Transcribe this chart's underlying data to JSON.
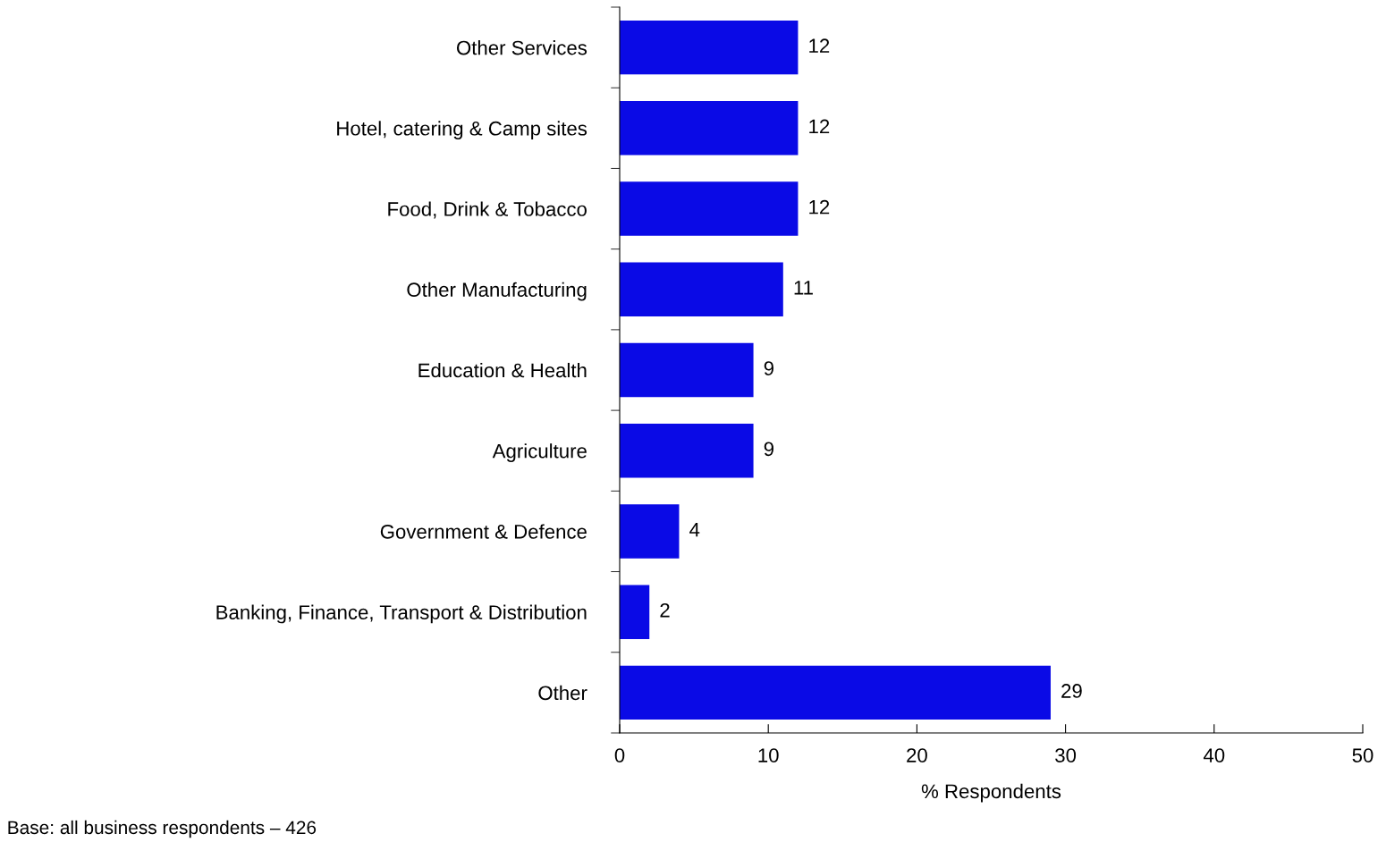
{
  "chart_data": {
    "type": "bar",
    "orientation": "horizontal",
    "xlabel": "% Respondents",
    "categories": [
      "Other Services",
      "Hotel, catering & Camp sites",
      "Food, Drink & Tobacco",
      "Other Manufacturing",
      "Education & Health",
      "Agriculture",
      "Government & Defence",
      "Banking, Finance, Transport & Distribution",
      "Other"
    ],
    "values": [
      12,
      12,
      12,
      11,
      9,
      9,
      4,
      2,
      29
    ],
    "color": "#0a0ae6",
    "xlim": [
      0,
      50
    ],
    "xticks": [
      0,
      10,
      20,
      30,
      40,
      50
    ],
    "grid": false,
    "legend": false,
    "data_labels": true,
    "annotations": [
      "Base: all business respondents – 426"
    ]
  }
}
